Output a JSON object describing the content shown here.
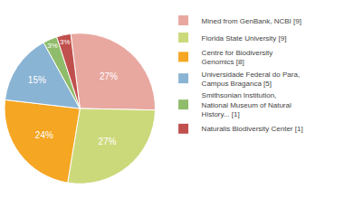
{
  "chart_data": {
    "type": "pie",
    "categories": [
      "Mined from GenBank, NCBI [9]",
      "Florida State University [9]",
      "Centre for Biodiversity\nGenomics [8]",
      "Universidade Federal do Para,\nCampus Braganca [5]",
      "Smithsonian Institution,\nNational Museum of Natural\nHistory... [1]",
      "Naturalis Biodiversity Center [1]"
    ],
    "values": [
      27,
      27,
      24,
      15,
      3,
      3
    ],
    "value_labels": [
      "27%",
      "27%",
      "24%",
      "15%",
      "3%",
      "3%"
    ],
    "colors": [
      "#e8a8a0",
      "#ccd97a",
      "#f5a623",
      "#8ab4d4",
      "#8fbc6a",
      "#c0504d"
    ],
    "data_labels": true,
    "legend": "right"
  }
}
